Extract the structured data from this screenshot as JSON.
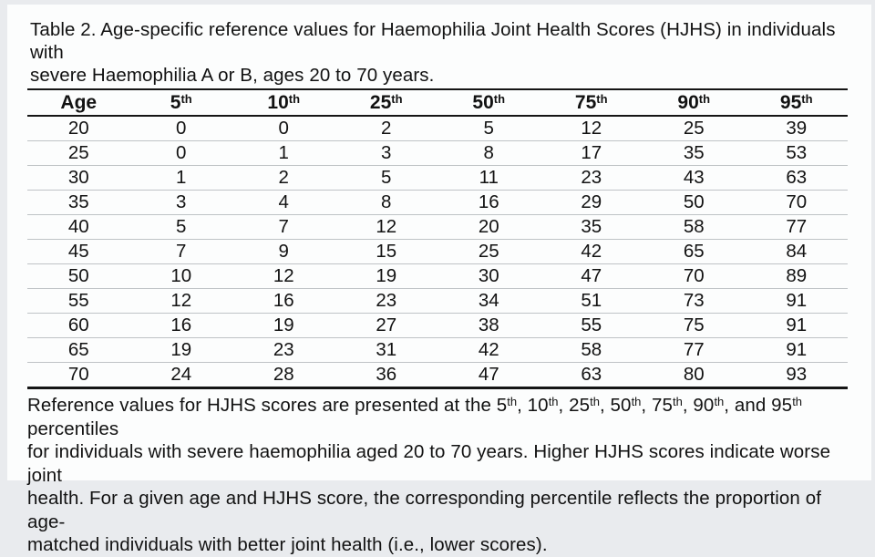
{
  "title": {
    "line1": "Table 2. Age-specific reference values for Haemophilia Joint Health Scores (HJHS) in individuals with",
    "line2": "severe Haemophilia A or B, ages 20 to 70 years."
  },
  "table": {
    "columns": [
      {
        "label": "Age",
        "sup": ""
      },
      {
        "label": "5",
        "sup": "th"
      },
      {
        "label": "10",
        "sup": "th"
      },
      {
        "label": "25",
        "sup": "th"
      },
      {
        "label": "50",
        "sup": "th"
      },
      {
        "label": "75",
        "sup": "th"
      },
      {
        "label": "90",
        "sup": "th"
      },
      {
        "label": "95",
        "sup": "th"
      }
    ],
    "rows": [
      [
        "20",
        "0",
        "0",
        "2",
        "5",
        "12",
        "25",
        "39"
      ],
      [
        "25",
        "0",
        "1",
        "3",
        "8",
        "17",
        "35",
        "53"
      ],
      [
        "30",
        "1",
        "2",
        "5",
        "11",
        "23",
        "43",
        "63"
      ],
      [
        "35",
        "3",
        "4",
        "8",
        "16",
        "29",
        "50",
        "70"
      ],
      [
        "40",
        "5",
        "7",
        "12",
        "20",
        "35",
        "58",
        "77"
      ],
      [
        "45",
        "7",
        "9",
        "15",
        "25",
        "42",
        "65",
        "84"
      ],
      [
        "50",
        "10",
        "12",
        "19",
        "30",
        "47",
        "70",
        "89"
      ],
      [
        "55",
        "12",
        "16",
        "23",
        "34",
        "51",
        "73",
        "91"
      ],
      [
        "60",
        "16",
        "19",
        "27",
        "38",
        "55",
        "75",
        "91"
      ],
      [
        "65",
        "19",
        "23",
        "31",
        "42",
        "58",
        "77",
        "91"
      ],
      [
        "70",
        "24",
        "28",
        "36",
        "47",
        "63",
        "80",
        "93"
      ]
    ]
  },
  "footnote": {
    "lines": [
      [
        {
          "t": "Reference values for HJHS scores are presented at the 5"
        },
        {
          "t": "th",
          "sup": true
        },
        {
          "t": ", 10"
        },
        {
          "t": "th",
          "sup": true
        },
        {
          "t": ", 25"
        },
        {
          "t": "th",
          "sup": true
        },
        {
          "t": ", 50"
        },
        {
          "t": "th",
          "sup": true
        },
        {
          "t": ", 75"
        },
        {
          "t": "th",
          "sup": true
        },
        {
          "t": ", 90"
        },
        {
          "t": "th",
          "sup": true
        },
        {
          "t": ", and 95"
        },
        {
          "t": "th",
          "sup": true
        },
        {
          "t": " percentiles"
        }
      ],
      [
        {
          "t": "for individuals with severe haemophilia aged 20 to 70 years. Higher HJHS scores indicate worse joint"
        }
      ],
      [
        {
          "t": "health. For a given age and HJHS score, the corresponding percentile reflects the proportion of age-"
        }
      ],
      [
        {
          "t": "matched individuals with better joint health (i.e., lower scores)."
        }
      ]
    ]
  },
  "colors": {
    "text": "#121212",
    "heavy_rule": "#151515",
    "row_divider": "#bfc3c6",
    "page_background": "#fcfdfd",
    "surround_background": "#e9ebee"
  }
}
